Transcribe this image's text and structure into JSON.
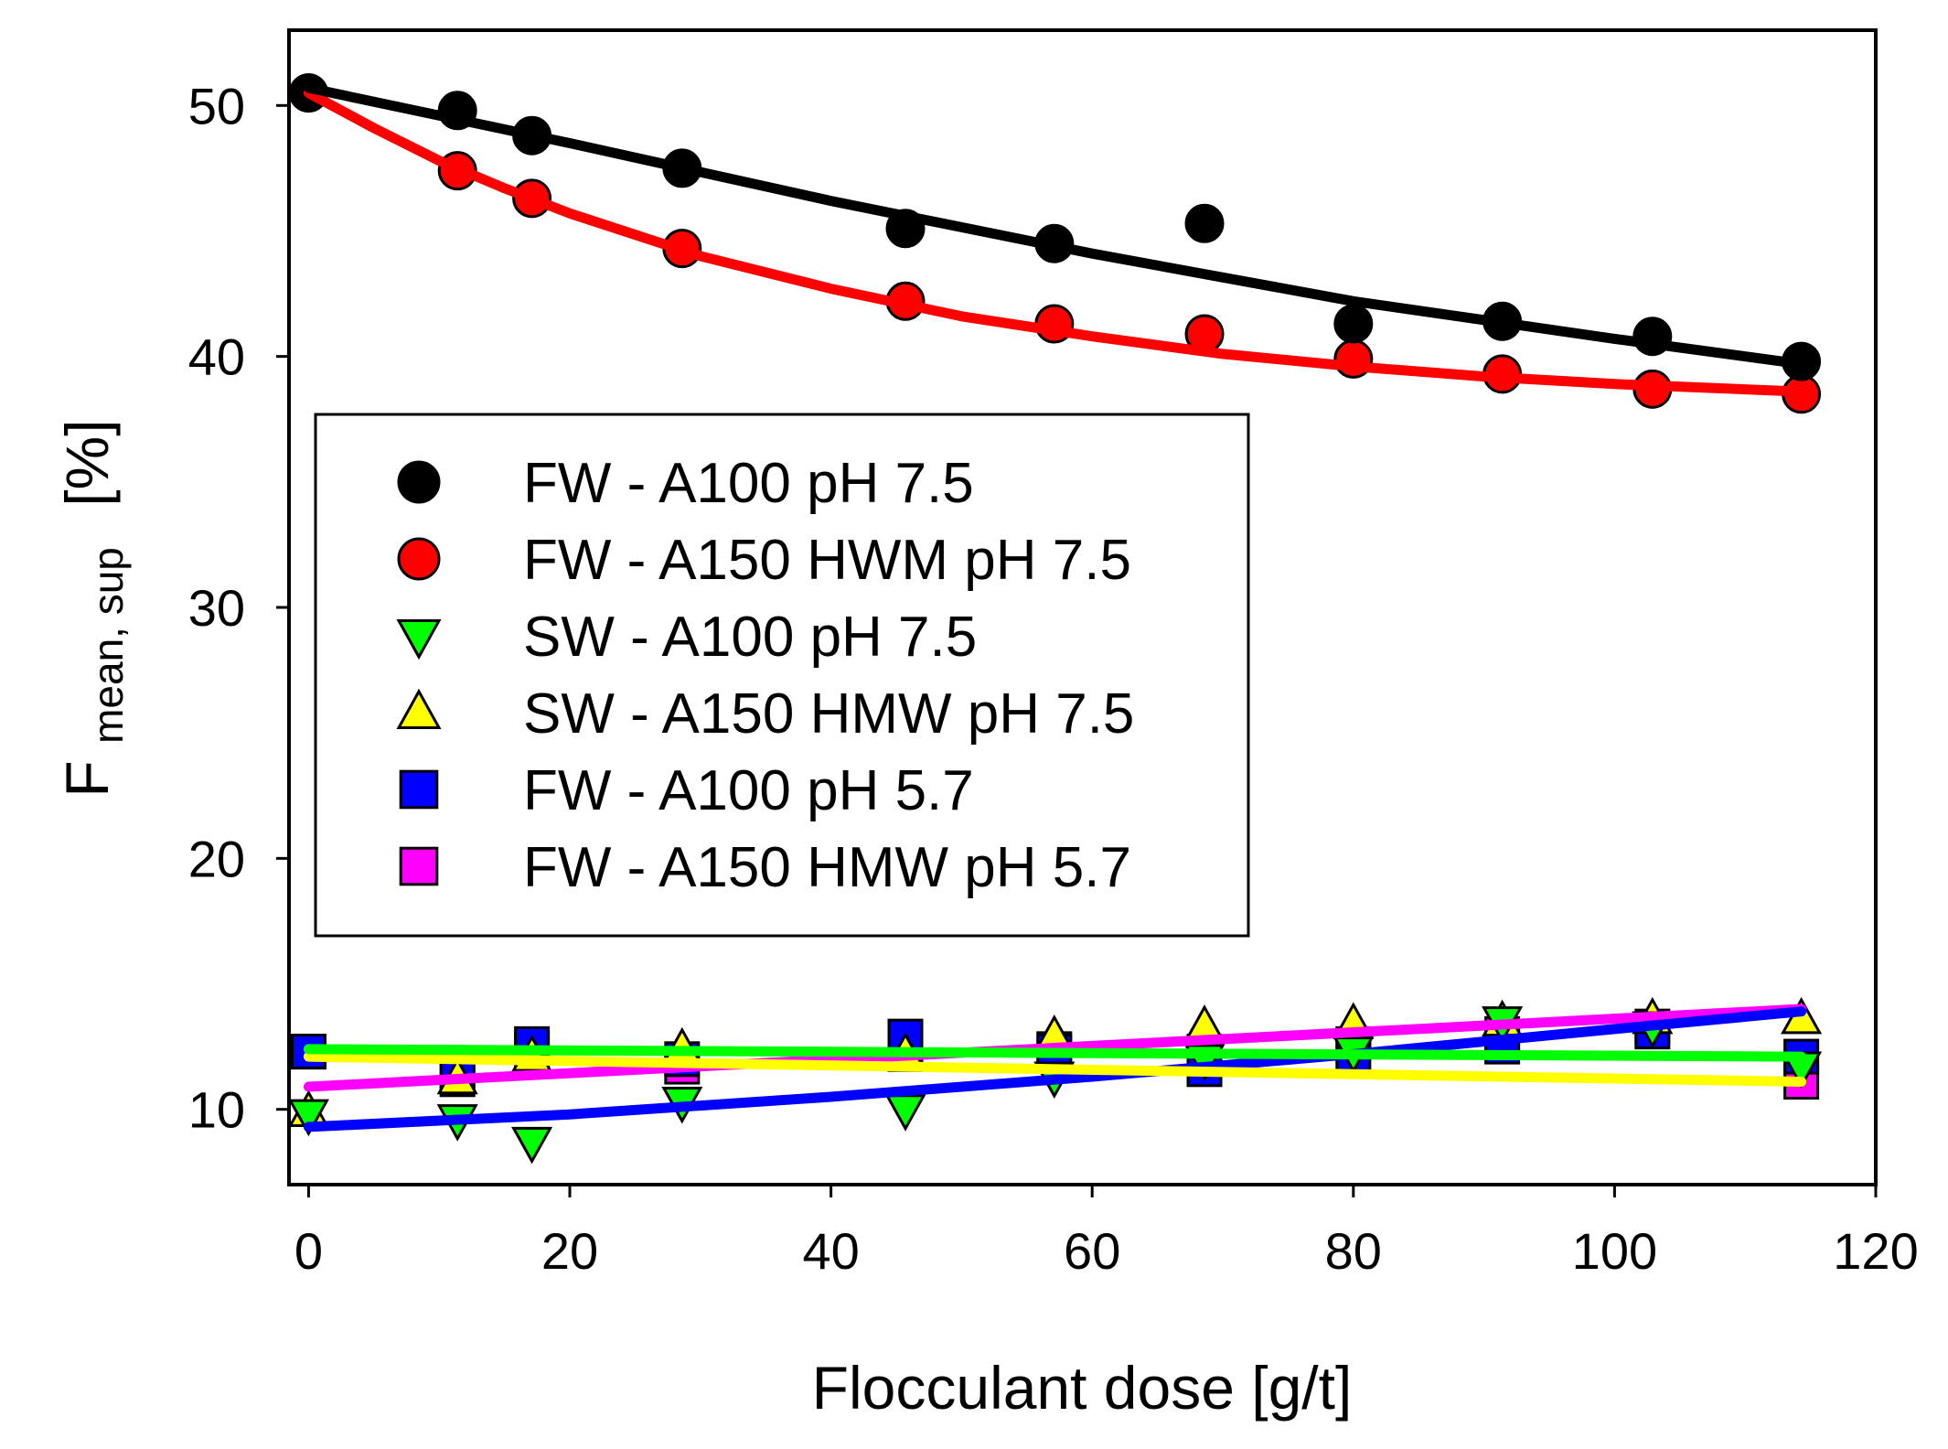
{
  "chart_data": {
    "type": "scatter",
    "title": "",
    "xlabel": "Flocculant dose [g/t]",
    "ylabel": {
      "main": "F",
      "subscript": "mean, sup",
      "unit": "[%]"
    },
    "xlim": [
      -1.5,
      120
    ],
    "ylim": [
      7,
      53
    ],
    "xticks": [
      0,
      20,
      40,
      60,
      80,
      100,
      120
    ],
    "yticks": [
      10,
      20,
      30,
      40,
      50
    ],
    "grid": false,
    "legend": {
      "position": "center-left"
    },
    "series": [
      {
        "name": "FW - A100 pH 7.5",
        "marker": "circle",
        "color": "#000000",
        "fit_color": "#000000",
        "points": [
          [
            0,
            50.5
          ],
          [
            11.4,
            49.8
          ],
          [
            17.1,
            48.8
          ],
          [
            28.6,
            47.5
          ],
          [
            45.7,
            45.1
          ],
          [
            57.1,
            44.5
          ],
          [
            68.6,
            45.3
          ],
          [
            80,
            41.3
          ],
          [
            91.4,
            41.4
          ],
          [
            102.9,
            40.8
          ],
          [
            114.3,
            39.8
          ]
        ],
        "fit": [
          [
            0,
            50.7
          ],
          [
            20,
            48.5
          ],
          [
            40,
            46.2
          ],
          [
            60,
            44.1
          ],
          [
            80,
            42.2
          ],
          [
            100,
            40.7
          ],
          [
            114.3,
            39.7
          ]
        ]
      },
      {
        "name": "FW - A150 HWM pH 7.5",
        "marker": "circle",
        "color": "#ff0000",
        "fit_color": "#ff0000",
        "points": [
          [
            0,
            50.5
          ],
          [
            11.4,
            47.4
          ],
          [
            17.1,
            46.3
          ],
          [
            28.6,
            44.3
          ],
          [
            45.7,
            42.2
          ],
          [
            57.1,
            41.3
          ],
          [
            68.6,
            40.9
          ],
          [
            80,
            39.9
          ],
          [
            91.4,
            39.3
          ],
          [
            102.9,
            38.7
          ],
          [
            114.3,
            38.5
          ]
        ],
        "fit": [
          [
            0,
            50.5
          ],
          [
            5,
            49.1
          ],
          [
            10,
            47.8
          ],
          [
            15,
            46.7
          ],
          [
            20,
            45.7
          ],
          [
            30,
            44
          ],
          [
            40,
            42.7
          ],
          [
            50,
            41.6
          ],
          [
            60,
            40.8
          ],
          [
            70,
            40.1
          ],
          [
            80,
            39.6
          ],
          [
            90,
            39.2
          ],
          [
            100,
            38.9
          ],
          [
            114.3,
            38.6
          ]
        ]
      },
      {
        "name": "SW - A100 pH 7.5",
        "marker": "triangle-down",
        "color": "#00ff00",
        "fit_color": "#00ff00",
        "points": [
          [
            0,
            9.8
          ],
          [
            11.4,
            9.6
          ],
          [
            17.1,
            8.7
          ],
          [
            28.6,
            10.3
          ],
          [
            45.7,
            10
          ],
          [
            57.1,
            11.3
          ],
          [
            68.6,
            12
          ],
          [
            80,
            12.3
          ],
          [
            91.4,
            13.5
          ],
          [
            102.9,
            13.3
          ],
          [
            114.3,
            11.7
          ]
        ],
        "fit": [
          [
            0,
            12.4
          ],
          [
            114.3,
            12.1
          ]
        ]
      },
      {
        "name": "SW - A150 HMW pH 7.5",
        "marker": "triangle-up",
        "color": "#ffff00",
        "fit_color": "#ffff00",
        "points": [
          [
            0,
            9.9
          ],
          [
            11.4,
            11.2
          ],
          [
            17.1,
            12.1
          ],
          [
            28.6,
            12.4
          ],
          [
            45.7,
            12.2
          ],
          [
            57.1,
            12.9
          ],
          [
            68.6,
            13.3
          ],
          [
            80,
            13.4
          ],
          [
            91.4,
            13.5
          ],
          [
            102.9,
            13.6
          ],
          [
            114.3,
            13.6
          ]
        ],
        "fit": [
          [
            0,
            12.1
          ],
          [
            114.3,
            11.1
          ]
        ]
      },
      {
        "name": "FW - A100 pH 5.7",
        "marker": "square",
        "color": "#0000ff",
        "fit_color": "#0000ff",
        "points": [
          [
            0,
            12.3
          ],
          [
            11.4,
            11.3
          ],
          [
            17.1,
            12.6
          ],
          [
            28.6,
            12
          ],
          [
            45.7,
            12.9
          ],
          [
            57.1,
            12.3
          ],
          [
            68.6,
            11.6
          ],
          [
            80,
            12
          ],
          [
            91.4,
            12.5
          ],
          [
            102.9,
            13.1
          ],
          [
            114.3,
            12.1
          ]
        ],
        "fit": [
          [
            0,
            9.3
          ],
          [
            20,
            9.8
          ],
          [
            40,
            10.5
          ],
          [
            60,
            11.3
          ],
          [
            80,
            12.2
          ],
          [
            100,
            13.2
          ],
          [
            114.3,
            13.9
          ]
        ]
      },
      {
        "name": "FW - A150 HMW pH 5.7",
        "marker": "square",
        "color": "#ff00ff",
        "fit_color": "#ff00ff",
        "points": [
          [
            0,
            12.3
          ],
          [
            11.4,
            11.2
          ],
          [
            17.1,
            12.4
          ],
          [
            28.6,
            11.7
          ],
          [
            45.7,
            12.2
          ],
          [
            57.1,
            12.4
          ],
          [
            68.6,
            12.3
          ],
          [
            80,
            12.6
          ],
          [
            91.4,
            13
          ],
          [
            102.9,
            13.3
          ],
          [
            114.3,
            11.1
          ]
        ],
        "fit": [
          [
            0,
            10.9
          ],
          [
            114.3,
            14
          ]
        ]
      }
    ]
  }
}
